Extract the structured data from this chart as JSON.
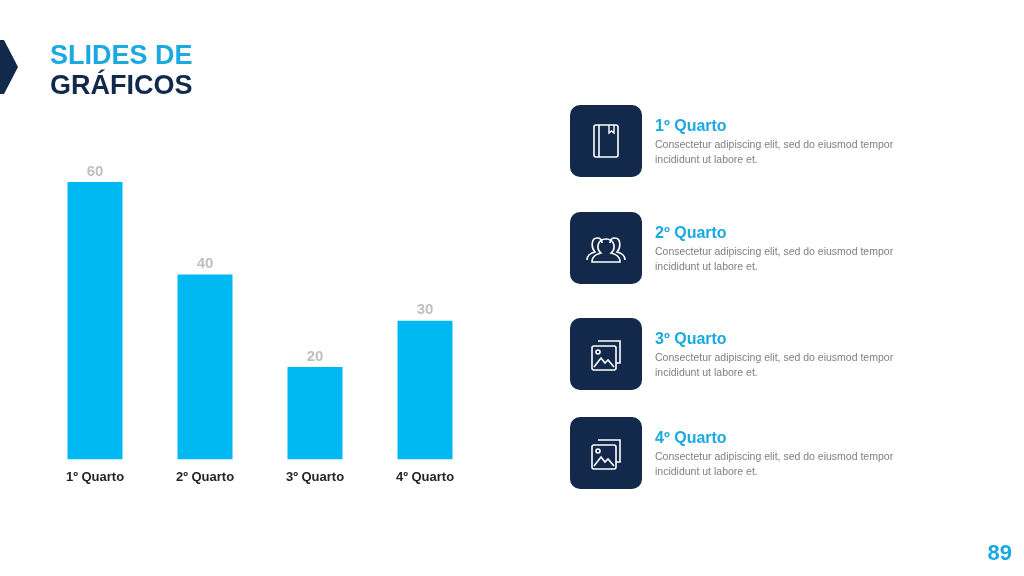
{
  "chart_data": [
    {
      "type": "bar",
      "title": "SLIDES DE",
      "subtitle": "GRÁFICOS",
      "categories": [
        "1º Quarto",
        "2º Quarto",
        "3º Quarto",
        "4º Quarto"
      ],
      "values": [
        60,
        40,
        20,
        30
      ],
      "color": "#00b9f2",
      "data_labels": true,
      "grid": false,
      "legend": false,
      "annotations": [
        "89"
      ]
    },
    {
      "type": "other",
      "annotations": [
        "1º Quarto",
        "Consectetur adipiscing elit, sed do eiusmod tempor incididunt ut labore et.",
        "2º Quarto",
        "Consectetur adipiscing elit, sed do eiusmod tempor incididunt ut labore et.",
        "3º Quarto",
        "Consectetur adipiscing elit, sed do eiusmod tempor incididunt ut labore et.",
        "4º Quarto",
        "Consectetur adipiscing elit, sed do eiusmod tempor incididunt ut labore et."
      ]
    }
  ]
}
